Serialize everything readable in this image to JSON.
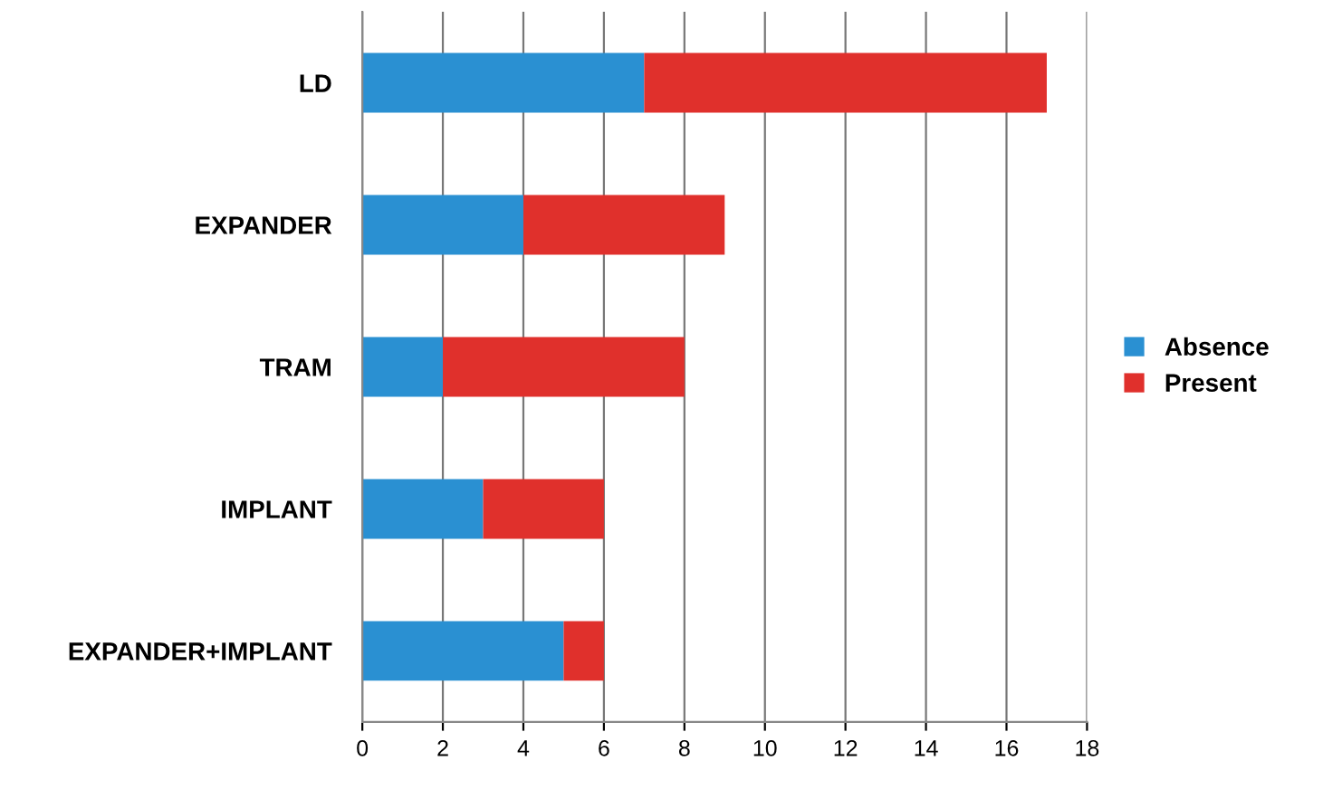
{
  "chart_data": {
    "type": "bar",
    "orientation": "horizontal",
    "stacked": true,
    "categories": [
      "LD",
      "EXPANDER",
      "TRAM",
      "IMPLANT",
      "EXPANDER+IMPLANT"
    ],
    "series": [
      {
        "name": "Absence",
        "color": "#2a90d2",
        "values": [
          7,
          4,
          2,
          3,
          5
        ]
      },
      {
        "name": "Present",
        "color": "#e0302c",
        "values": [
          10,
          5,
          6,
          3,
          1
        ]
      }
    ],
    "xlim": [
      0,
      18
    ],
    "xticks": [
      0,
      2,
      4,
      6,
      8,
      10,
      12,
      14,
      16,
      18
    ],
    "grid": "x",
    "legend": "right"
  }
}
